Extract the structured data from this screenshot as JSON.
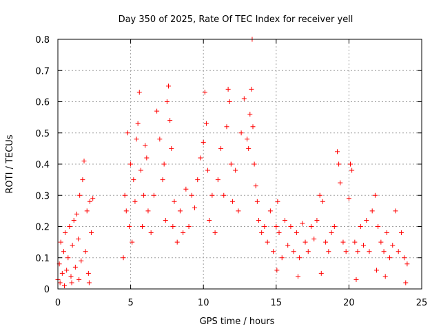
{
  "chart_data": {
    "type": "scatter",
    "title": "Day 350 of 2025, Rate Of TEC Index for receiver yell",
    "xlabel": "GPS time / hours",
    "ylabel": "ROTI / TECUs",
    "xlim": [
      0,
      25
    ],
    "ylim": [
      0,
      0.8
    ],
    "xticks": [
      0,
      5,
      10,
      15,
      20,
      25
    ],
    "yticks": [
      0,
      0.1,
      0.2,
      0.3,
      0.4,
      0.5,
      0.6,
      0.7,
      0.8
    ],
    "xtick_labels": [
      "0",
      "5",
      "10",
      "15",
      "20",
      "25"
    ],
    "ytick_labels": [
      "0",
      "0.1",
      "0.2",
      "0.3",
      "0.4",
      "0.5",
      "0.6",
      "0.7",
      "0.8"
    ],
    "grid": true,
    "marker": "+",
    "color": "#ff0000",
    "series": [
      {
        "points": [
          [
            0.0,
            0.03
          ],
          [
            0.1,
            0.08
          ],
          [
            0.2,
            0.15
          ],
          [
            0.3,
            0.05
          ],
          [
            0.4,
            0.12
          ],
          [
            0.5,
            0.18
          ],
          [
            0.6,
            0.06
          ],
          [
            0.7,
            0.1
          ],
          [
            0.8,
            0.2
          ],
          [
            0.9,
            0.04
          ],
          [
            1.0,
            0.14
          ],
          [
            1.1,
            0.22
          ],
          [
            1.2,
            0.07
          ],
          [
            1.3,
            0.24
          ],
          [
            1.4,
            0.16
          ],
          [
            1.5,
            0.3
          ],
          [
            1.6,
            0.09
          ],
          [
            1.7,
            0.35
          ],
          [
            1.8,
            0.41
          ],
          [
            1.9,
            0.12
          ],
          [
            2.0,
            0.25
          ],
          [
            2.1,
            0.05
          ],
          [
            2.2,
            0.28
          ],
          [
            2.3,
            0.18
          ],
          [
            2.4,
            0.29
          ],
          [
            0.15,
            0.02
          ],
          [
            0.45,
            0.01
          ],
          [
            0.95,
            0.02
          ],
          [
            1.45,
            0.03
          ],
          [
            2.15,
            0.02
          ],
          [
            4.5,
            0.1
          ],
          [
            4.6,
            0.3
          ],
          [
            4.7,
            0.25
          ],
          [
            4.8,
            0.5
          ],
          [
            4.9,
            0.2
          ],
          [
            5.0,
            0.4
          ],
          [
            5.1,
            0.15
          ],
          [
            5.2,
            0.35
          ],
          [
            5.3,
            0.28
          ],
          [
            5.4,
            0.48
          ],
          [
            5.5,
            0.53
          ],
          [
            5.6,
            0.63
          ],
          [
            5.7,
            0.38
          ],
          [
            5.8,
            0.2
          ],
          [
            5.9,
            0.3
          ],
          [
            6.0,
            0.46
          ],
          [
            6.1,
            0.42
          ],
          [
            6.2,
            0.25
          ],
          [
            6.4,
            0.18
          ],
          [
            6.6,
            0.3
          ],
          [
            6.8,
            0.57
          ],
          [
            7.0,
            0.48
          ],
          [
            7.2,
            0.35
          ],
          [
            7.3,
            0.4
          ],
          [
            7.4,
            0.22
          ],
          [
            7.5,
            0.6
          ],
          [
            7.6,
            0.65
          ],
          [
            7.7,
            0.54
          ],
          [
            7.8,
            0.45
          ],
          [
            7.9,
            0.2
          ],
          [
            8.0,
            0.28
          ],
          [
            8.2,
            0.15
          ],
          [
            8.4,
            0.25
          ],
          [
            8.6,
            0.18
          ],
          [
            8.8,
            0.32
          ],
          [
            9.0,
            0.2
          ],
          [
            9.2,
            0.3
          ],
          [
            9.4,
            0.26
          ],
          [
            9.6,
            0.35
          ],
          [
            9.8,
            0.42
          ],
          [
            10.0,
            0.47
          ],
          [
            10.1,
            0.63
          ],
          [
            10.2,
            0.53
          ],
          [
            10.3,
            0.38
          ],
          [
            10.4,
            0.22
          ],
          [
            10.6,
            0.3
          ],
          [
            10.8,
            0.18
          ],
          [
            11.0,
            0.35
          ],
          [
            11.2,
            0.45
          ],
          [
            11.4,
            0.3
          ],
          [
            11.6,
            0.52
          ],
          [
            11.7,
            0.64
          ],
          [
            11.8,
            0.6
          ],
          [
            11.9,
            0.4
          ],
          [
            12.0,
            0.28
          ],
          [
            12.2,
            0.38
          ],
          [
            12.4,
            0.25
          ],
          [
            12.6,
            0.5
          ],
          [
            12.8,
            0.61
          ],
          [
            13.0,
            0.48
          ],
          [
            13.1,
            0.45
          ],
          [
            13.2,
            0.56
          ],
          [
            13.3,
            0.64
          ],
          [
            13.35,
            0.8
          ],
          [
            13.4,
            0.52
          ],
          [
            13.5,
            0.4
          ],
          [
            13.6,
            0.33
          ],
          [
            13.7,
            0.28
          ],
          [
            13.8,
            0.22
          ],
          [
            14.0,
            0.18
          ],
          [
            14.2,
            0.2
          ],
          [
            14.4,
            0.15
          ],
          [
            14.6,
            0.25
          ],
          [
            14.8,
            0.12
          ],
          [
            15.0,
            0.2
          ],
          [
            15.1,
            0.28
          ],
          [
            15.2,
            0.18
          ],
          [
            15.4,
            0.1
          ],
          [
            15.6,
            0.22
          ],
          [
            15.8,
            0.14
          ],
          [
            16.0,
            0.2
          ],
          [
            16.2,
            0.12
          ],
          [
            16.4,
            0.18
          ],
          [
            16.6,
            0.1
          ],
          [
            16.8,
            0.21
          ],
          [
            17.0,
            0.15
          ],
          [
            17.2,
            0.12
          ],
          [
            17.4,
            0.2
          ],
          [
            17.6,
            0.16
          ],
          [
            17.8,
            0.22
          ],
          [
            18.0,
            0.3
          ],
          [
            18.2,
            0.28
          ],
          [
            18.4,
            0.15
          ],
          [
            18.6,
            0.12
          ],
          [
            18.8,
            0.18
          ],
          [
            19.0,
            0.2
          ],
          [
            19.2,
            0.44
          ],
          [
            19.3,
            0.4
          ],
          [
            19.4,
            0.34
          ],
          [
            19.6,
            0.15
          ],
          [
            19.8,
            0.12
          ],
          [
            20.0,
            0.29
          ],
          [
            20.1,
            0.4
          ],
          [
            20.2,
            0.38
          ],
          [
            20.4,
            0.15
          ],
          [
            20.6,
            0.12
          ],
          [
            20.8,
            0.2
          ],
          [
            21.0,
            0.14
          ],
          [
            21.2,
            0.22
          ],
          [
            21.4,
            0.12
          ],
          [
            21.6,
            0.25
          ],
          [
            21.8,
            0.3
          ],
          [
            22.0,
            0.2
          ],
          [
            22.2,
            0.15
          ],
          [
            22.4,
            0.12
          ],
          [
            22.6,
            0.18
          ],
          [
            22.8,
            0.1
          ],
          [
            23.0,
            0.14
          ],
          [
            23.2,
            0.25
          ],
          [
            23.4,
            0.12
          ],
          [
            23.6,
            0.18
          ],
          [
            23.8,
            0.1
          ],
          [
            24.0,
            0.08
          ],
          [
            15.05,
            0.06
          ],
          [
            16.5,
            0.04
          ],
          [
            18.1,
            0.05
          ],
          [
            20.5,
            0.03
          ],
          [
            22.5,
            0.04
          ],
          [
            23.9,
            0.02
          ],
          [
            21.9,
            0.06
          ]
        ]
      }
    ]
  }
}
